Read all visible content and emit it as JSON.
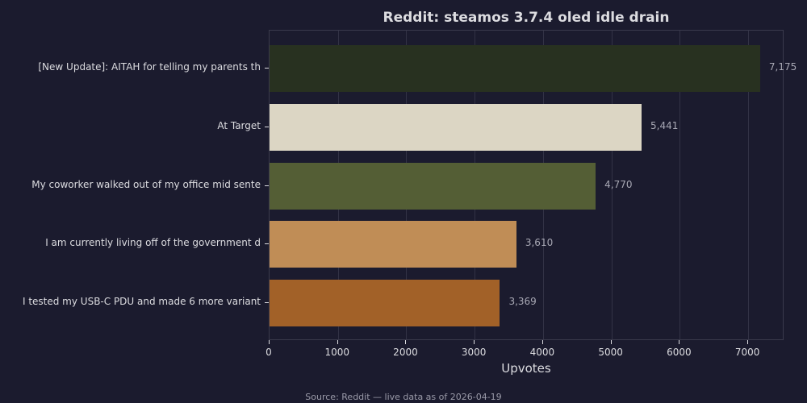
{
  "chart_data": {
    "type": "bar",
    "orientation": "horizontal",
    "title": "Reddit: steamos 3.7.4 oled idle drain",
    "xlabel": "Upvotes",
    "ylabel": "",
    "categories": [
      "[New Update]: AITAH for telling my parents th",
      "At Target",
      "My coworker walked out of my office mid sente",
      "I am currently living off of the government d",
      "I tested my USB-C PDU and made 6 more variant"
    ],
    "values": [
      7175,
      5441,
      4770,
      3610,
      3369
    ],
    "value_labels": [
      "7,175",
      "5,441",
      "4,770",
      "3,610",
      "3,369"
    ],
    "colors": [
      "#283120",
      "#dcd6c4",
      "#545e35",
      "#c08d56",
      "#a26128"
    ],
    "xlim": [
      0,
      7530
    ],
    "xticks": [
      "0",
      "1000",
      "2000",
      "3000",
      "4000",
      "5000",
      "6000",
      "7000"
    ],
    "grid": true,
    "legend": "none",
    "source": "Source: Reddit — live data as of 2026-04-19"
  }
}
